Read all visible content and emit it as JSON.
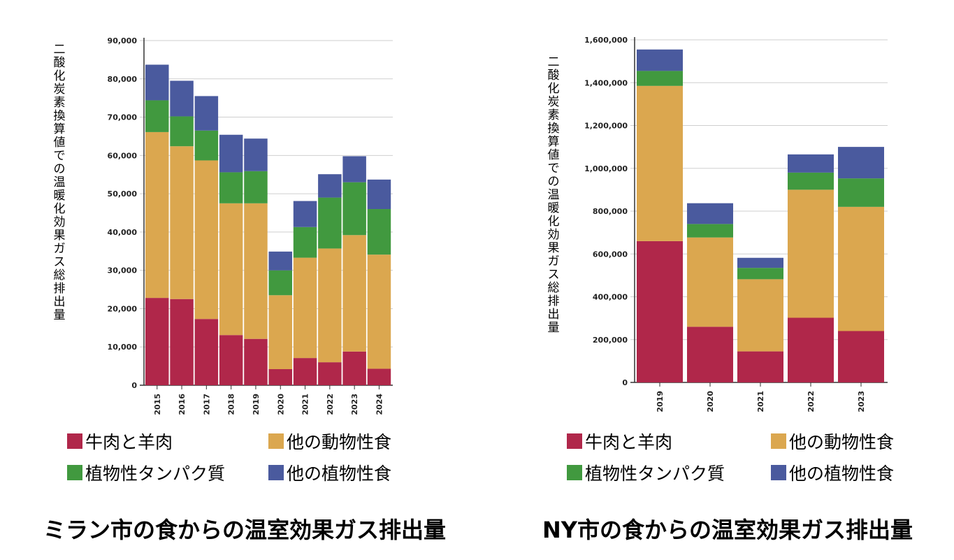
{
  "chart_data": [
    {
      "type": "bar",
      "stacked": true,
      "title": "ミラン市の食からの温室効果ガス排出量",
      "ylabel": "二酸化炭素換算値での温暖化効果ガス総排出量",
      "categories": [
        "2015",
        "2016",
        "2017",
        "2018",
        "2019",
        "2020",
        "2021",
        "2022",
        "2023",
        "2024"
      ],
      "ylim": [
        0,
        90000
      ],
      "yticks": [
        0,
        10000,
        20000,
        30000,
        40000,
        50000,
        60000,
        70000,
        80000,
        90000
      ],
      "ytick_labels": [
        "0",
        "10,000",
        "20,000",
        "30,000",
        "40,000",
        "50,000",
        "60,000",
        "70,000",
        "80,000",
        "90,000"
      ],
      "grid": true,
      "legend_position": "bottom",
      "series": [
        {
          "name": "牛肉と羊肉",
          "color": "#B0274A",
          "values": [
            22800,
            22500,
            17300,
            13100,
            12100,
            4200,
            7100,
            6000,
            8800,
            4300
          ]
        },
        {
          "name": "他の動物性食",
          "color": "#DBA74F",
          "values": [
            43300,
            39900,
            41400,
            34400,
            35400,
            19300,
            26200,
            29700,
            30400,
            29800
          ]
        },
        {
          "name": "植物性タンパク質",
          "color": "#41993F",
          "values": [
            8300,
            7800,
            7800,
            8100,
            8400,
            6500,
            8000,
            13300,
            13800,
            11900
          ]
        },
        {
          "name": "他の植物性食",
          "color": "#4A5A9E",
          "values": [
            9300,
            9300,
            9000,
            9800,
            8500,
            4900,
            6800,
            6100,
            6800,
            7700
          ]
        }
      ]
    },
    {
      "type": "bar",
      "stacked": true,
      "title": "NY市の食からの温室効果ガス排出量",
      "ylabel": "二酸化炭素換算値での温暖化効果ガス総排出量",
      "categories": [
        "2019",
        "2020",
        "2021",
        "2022",
        "2023"
      ],
      "ylim": [
        0,
        1600000
      ],
      "yticks": [
        0,
        200000,
        400000,
        600000,
        800000,
        1000000,
        1200000,
        1400000,
        1600000
      ],
      "ytick_labels": [
        "0",
        "200,000",
        "400,000",
        "600,000",
        "800,000",
        "1,000,000",
        "1,200,000",
        "1,400,000",
        "1,600,000"
      ],
      "grid": true,
      "legend_position": "bottom",
      "series": [
        {
          "name": "牛肉と羊肉",
          "color": "#B0274A",
          "values": [
            660000,
            260000,
            145000,
            302000,
            240000
          ]
        },
        {
          "name": "他の動物性食",
          "color": "#DBA74F",
          "values": [
            725000,
            417000,
            337000,
            598000,
            580000
          ]
        },
        {
          "name": "植物性タンパク質",
          "color": "#41993F",
          "values": [
            70000,
            63000,
            53000,
            80000,
            133000
          ]
        },
        {
          "name": "他の植物性食",
          "color": "#4A5A9E",
          "values": [
            100000,
            97000,
            47000,
            85000,
            147000
          ]
        }
      ]
    }
  ]
}
